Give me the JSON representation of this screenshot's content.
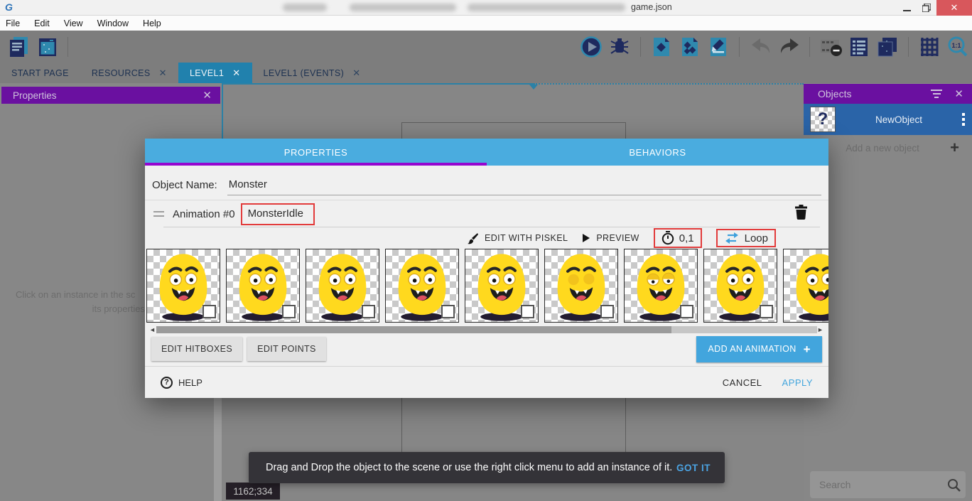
{
  "window": {
    "title": "game.json",
    "minimize": "–",
    "restore": "🗗",
    "close": "✕",
    "logo": "gdevelop-logo"
  },
  "menu": {
    "items": [
      "File",
      "Edit",
      "View",
      "Window",
      "Help"
    ]
  },
  "toolbar": {
    "left_icons": [
      "project-manager-icon",
      "start-page-icon"
    ],
    "right_icons": [
      "play-icon",
      "debug-icon",
      "new-scene-icon",
      "new-external-layout-icon",
      "new-events-icon",
      "undo-icon",
      "redo-icon",
      "render-options-icon",
      "objects-list-icon",
      "layers-icon",
      "grid-icon",
      "zoom-1-1-icon"
    ]
  },
  "tabs": [
    {
      "label": "START PAGE",
      "closable": false,
      "active": false
    },
    {
      "label": "RESOURCES",
      "closable": true,
      "active": false
    },
    {
      "label": "LEVEL1",
      "closable": true,
      "active": true
    },
    {
      "label": "LEVEL1 (EVENTS)",
      "closable": true,
      "active": false
    }
  ],
  "properties_panel": {
    "title": "Properties",
    "close": "✕",
    "hint_line1": "Click on an instance in the sc",
    "hint_line2": "its properties"
  },
  "objects_panel": {
    "title": "Objects",
    "close": "✕",
    "object_name": "NewObject",
    "object_icon": "?",
    "add_label": "Add a new object",
    "add_plus": "+",
    "search_placeholder": "Search"
  },
  "dialog": {
    "tab_properties": "PROPERTIES",
    "tab_behaviors": "BEHAVIORS",
    "object_name_label": "Object Name:",
    "object_name_value": "Monster",
    "animation_label": "Animation #0",
    "animation_name_value": "MonsterIdle",
    "edit_with_piskel": "EDIT WITH PISKEL",
    "preview": "PREVIEW",
    "time_between_frames": "0,1",
    "loop_label": "Loop",
    "frames": [
      {
        "eyes": "open"
      },
      {
        "eyes": "open"
      },
      {
        "eyes": "open"
      },
      {
        "eyes": "open"
      },
      {
        "eyes": "open"
      },
      {
        "eyes": "closed"
      },
      {
        "eyes": "half"
      },
      {
        "eyes": "open"
      },
      {
        "eyes": "open"
      }
    ],
    "edit_hitboxes": "EDIT HITBOXES",
    "edit_points": "EDIT POINTS",
    "add_animation": "ADD AN ANIMATION",
    "add_animation_plus": "+",
    "help": "HELP",
    "cancel": "CANCEL",
    "apply": "APPLY"
  },
  "snackbar": {
    "message": "Drag and Drop the object to the scene or use the right click menu to add an instance of it.",
    "action": "GOT IT"
  },
  "statusbar": {
    "coordinates": "1162;334"
  },
  "colors": {
    "accent_blue": "#42a5dd",
    "dialog_header_blue": "#4aacdf",
    "panel_purple": "#6a10a0",
    "tab_active_blue": "#2181ad",
    "selected_row_blue": "#2a64a8",
    "annotation_red": "#e23b3b",
    "close_button_red": "#d8575c",
    "snackbar_dark": "#343338",
    "monster_yellow": "#ffd91e"
  }
}
